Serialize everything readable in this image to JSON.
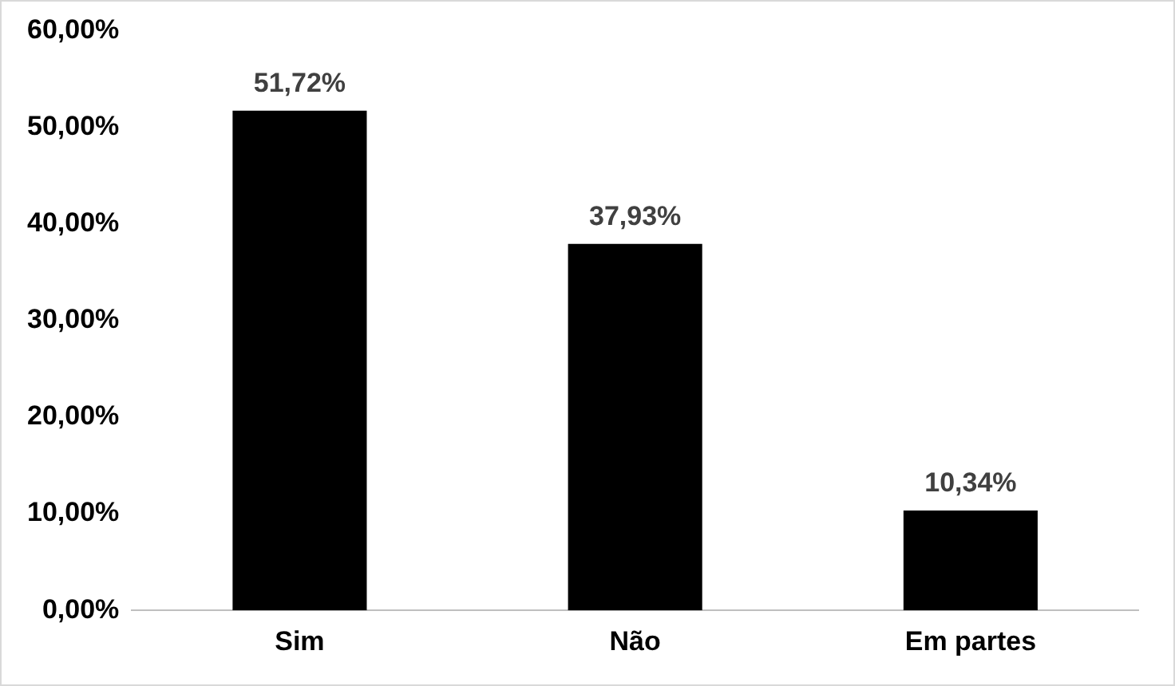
{
  "chart_data": {
    "type": "bar",
    "categories": [
      "Sim",
      "Não",
      "Em partes"
    ],
    "values": [
      51.72,
      37.93,
      10.34
    ],
    "color": "#000000",
    "value_labels": [
      "51,72%",
      "37,93%",
      "10,34%"
    ],
    "ylim": [
      0,
      60
    ],
    "yticks": [
      {
        "value": 0,
        "label": "0,00%"
      },
      {
        "value": 10,
        "label": "10,00%"
      },
      {
        "value": 20,
        "label": "20,00%"
      },
      {
        "value": 30,
        "label": "30,00%"
      },
      {
        "value": 40,
        "label": "40,00%"
      },
      {
        "value": 50,
        "label": "50,00%"
      },
      {
        "value": 60,
        "label": "60,00%"
      }
    ],
    "grid": false,
    "legend": false
  }
}
